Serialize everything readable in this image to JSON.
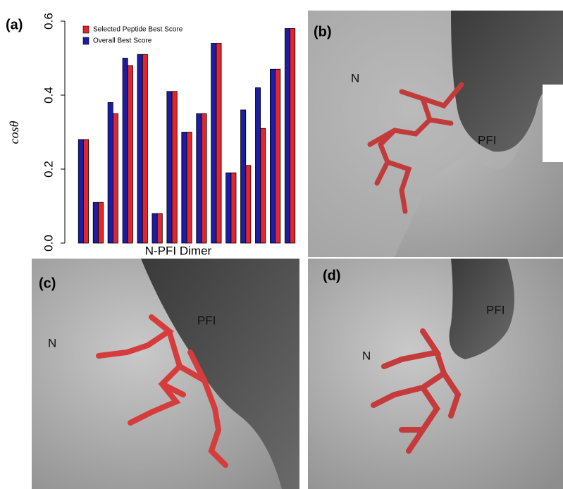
{
  "chart_data": {
    "type": "bar",
    "panel_label": "(a)",
    "ylabel": "cosθ",
    "xlabel": "N-PFI Dimer",
    "categories": [
      null,
      null,
      null,
      null,
      null,
      null,
      null,
      null,
      null,
      null,
      null,
      null,
      null,
      null,
      null
    ],
    "series": [
      {
        "name": "Selected Peptide Best Score",
        "color": "#e3262e",
        "values": [
          0.28,
          0.11,
          0.35,
          0.48,
          0.51,
          0.08,
          0.41,
          0.3,
          0.35,
          0.54,
          0.19,
          0.21,
          0.31,
          0.47,
          0.58
        ]
      },
      {
        "name": "Overall Best Score",
        "color": "#1c1ca6",
        "values": [
          0.28,
          0.11,
          0.38,
          0.5,
          0.51,
          0.08,
          0.41,
          0.3,
          0.35,
          0.54,
          0.19,
          0.36,
          0.42,
          0.47,
          0.58
        ]
      }
    ],
    "ylim": [
      0,
      0.6
    ],
    "yticks": [
      {
        "value": 0,
        "label": "0.0"
      },
      0.2,
      0.4,
      0.6
    ],
    "legend": "top-left"
  },
  "panels": [
    {
      "label": "(b)",
      "annotations": [
        "N",
        "PFI"
      ]
    },
    {
      "label": "(c)",
      "annotations": [
        "N",
        "PFI"
      ]
    },
    {
      "label": "(d)",
      "annotations": [
        "N",
        "PFI"
      ]
    }
  ]
}
